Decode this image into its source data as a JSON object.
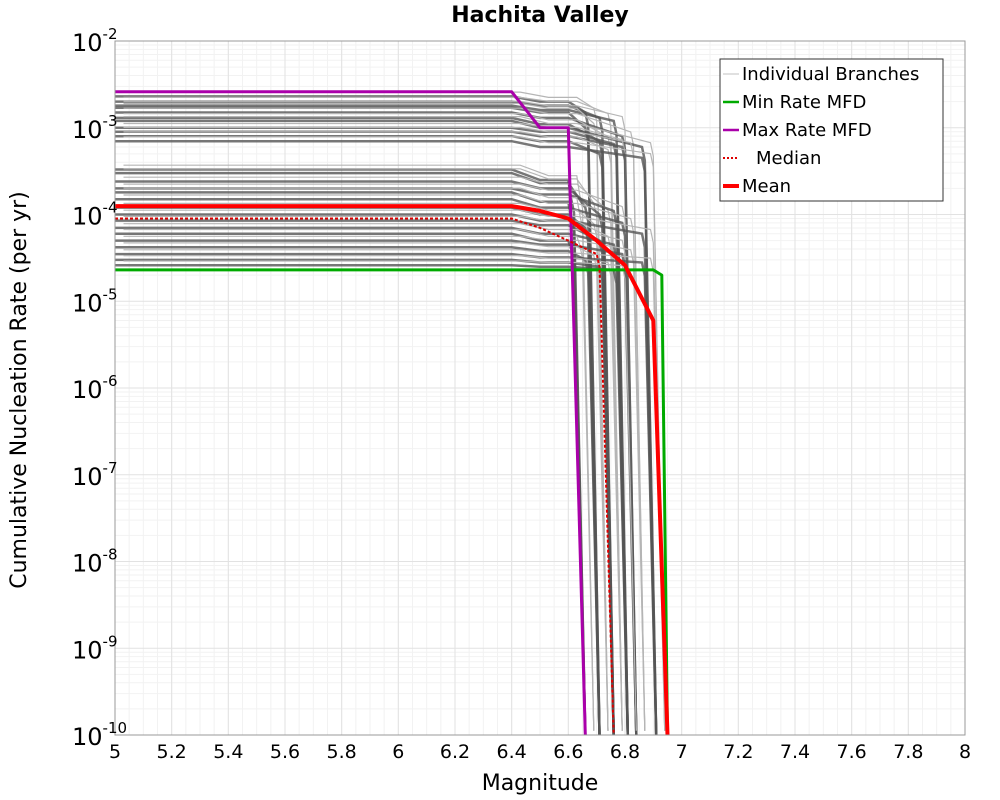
{
  "chart_data": {
    "type": "line",
    "title": "Hachita Valley",
    "xlabel": "Magnitude",
    "ylabel": "Cumulative Nucleation Rate (per yr)",
    "xlim": [
      5,
      8
    ],
    "ylim": [
      1e-10,
      0.01
    ],
    "yscale": "log",
    "grid": true,
    "legend_position": "top-right",
    "x_ticks": [
      "5",
      "5.2",
      "5.4",
      "5.6",
      "5.8",
      "6",
      "6.2",
      "6.4",
      "6.6",
      "6.8",
      "7",
      "7.2",
      "7.4",
      "7.6",
      "7.8",
      "8"
    ],
    "y_ticks": [
      {
        "base": "10",
        "exp": "-2"
      },
      {
        "base": "10",
        "exp": "-3"
      },
      {
        "base": "10",
        "exp": "-4"
      },
      {
        "base": "10",
        "exp": "-5"
      },
      {
        "base": "10",
        "exp": "-6"
      },
      {
        "base": "10",
        "exp": "-7"
      },
      {
        "base": "10",
        "exp": "-8"
      },
      {
        "base": "10",
        "exp": "-9"
      },
      {
        "base": "10",
        "exp": "-10"
      }
    ],
    "legend": [
      {
        "label": "Individual Branches",
        "color": "#c0c0c0",
        "style": "thin"
      },
      {
        "label": "Min Rate MFD",
        "color": "#00aa00",
        "style": "solid"
      },
      {
        "label": "Max Rate MFD",
        "color": "#aa00aa",
        "style": "solid"
      },
      {
        "label": "Median",
        "color": "#dd0000",
        "style": "dotted"
      },
      {
        "label": "Mean",
        "color": "#ff0000",
        "style": "thick"
      }
    ],
    "branch_color": "#555555",
    "series": [
      {
        "name": "Min Rate MFD",
        "color": "#00aa00",
        "width": 3,
        "x": [
          5.0,
          6.9,
          6.93,
          6.95
        ],
        "y": [
          2.3e-05,
          2.3e-05,
          2e-05,
          1e-10
        ]
      },
      {
        "name": "Max Rate MFD",
        "color": "#aa00aa",
        "width": 3,
        "x": [
          5.0,
          6.4,
          6.5,
          6.6,
          6.66
        ],
        "y": [
          0.0026,
          0.0026,
          0.001,
          0.001,
          1e-10
        ]
      },
      {
        "name": "Median",
        "color": "#dd0000",
        "width": 2,
        "dash": "3,2",
        "x": [
          5.0,
          6.4,
          6.5,
          6.6,
          6.7,
          6.71,
          6.76
        ],
        "y": [
          9e-05,
          9e-05,
          7e-05,
          5e-05,
          3.5e-05,
          2.5e-05,
          1e-10
        ]
      },
      {
        "name": "Mean",
        "color": "#ff0000",
        "width": 4,
        "x": [
          5.0,
          6.4,
          6.5,
          6.6,
          6.7,
          6.8,
          6.9,
          6.95
        ],
        "y": [
          0.000125,
          0.000125,
          0.00011,
          9e-05,
          5e-05,
          2.6e-05,
          6e-06,
          1e-10
        ]
      }
    ],
    "branches": [
      {
        "rate": 0.0023,
        "r1": 0.002,
        "r2": 0.0015,
        "mmax": 6.71
      },
      {
        "rate": 0.002,
        "r1": 0.0018,
        "r2": 0.0013,
        "mmax": 6.76
      },
      {
        "rate": 0.0018,
        "r1": 0.0016,
        "r2": 0.0012,
        "mmax": 6.81
      },
      {
        "rate": 0.0017,
        "r1": 0.0015,
        "r2": 0.001,
        "mmax": 6.71
      },
      {
        "rate": 0.0015,
        "r1": 0.0013,
        "r2": 0.0008,
        "mmax": 6.84
      },
      {
        "rate": 0.0013,
        "r1": 0.0011,
        "r2": 0.0007,
        "mmax": 6.76
      },
      {
        "rate": 0.0012,
        "r1": 0.001,
        "r2": 0.0006,
        "mmax": 6.91
      },
      {
        "rate": 0.001,
        "r1": 0.0009,
        "r2": 0.00065,
        "mmax": 6.81
      },
      {
        "rate": 0.0009,
        "r1": 0.0008,
        "r2": 0.0006,
        "mmax": 6.84
      },
      {
        "rate": 0.0008,
        "r1": 0.0007,
        "r2": 0.0005,
        "mmax": 6.76
      },
      {
        "rate": 0.0007,
        "r1": 0.0006,
        "r2": 0.00045,
        "mmax": 6.91
      },
      {
        "rate": 0.00033,
        "r1": 0.00025,
        "r2": 0.00015,
        "mmax": 6.66
      },
      {
        "rate": 0.0003,
        "r1": 0.00023,
        "r2": 0.00012,
        "mmax": 6.71
      },
      {
        "rate": 0.00024,
        "r1": 0.0002,
        "r2": 0.0001,
        "mmax": 6.76
      },
      {
        "rate": 0.0002,
        "r1": 0.00017,
        "r2": 0.00011,
        "mmax": 6.81
      },
      {
        "rate": 0.00018,
        "r1": 0.00014,
        "r2": 9e-05,
        "mmax": 6.66
      },
      {
        "rate": 0.00015,
        "r1": 0.00012,
        "r2": 8e-05,
        "mmax": 6.84
      },
      {
        "rate": 0.00012,
        "r1": 0.0001,
        "r2": 7e-05,
        "mmax": 6.71
      },
      {
        "rate": 0.0001,
        "r1": 8.5e-05,
        "r2": 6e-05,
        "mmax": 6.91
      },
      {
        "rate": 8.5e-05,
        "r1": 7.5e-05,
        "r2": 5e-05,
        "mmax": 6.76
      },
      {
        "rate": 7e-05,
        "r1": 6e-05,
        "r2": 4.5e-05,
        "mmax": 6.81
      },
      {
        "rate": 6e-05,
        "r1": 5e-05,
        "r2": 4e-05,
        "mmax": 6.66
      },
      {
        "rate": 5e-05,
        "r1": 4.5e-05,
        "r2": 3.5e-05,
        "mmax": 6.84
      },
      {
        "rate": 4.2e-05,
        "r1": 3.8e-05,
        "r2": 3e-05,
        "mmax": 6.71
      },
      {
        "rate": 3.5e-05,
        "r1": 3.2e-05,
        "r2": 2.8e-05,
        "mmax": 6.91
      },
      {
        "rate": 3e-05,
        "r1": 2.8e-05,
        "r2": 2.5e-05,
        "mmax": 6.76
      },
      {
        "rate": 2.6e-05,
        "r1": 2.5e-05,
        "r2": 2.3e-05,
        "mmax": 6.81
      }
    ]
  }
}
